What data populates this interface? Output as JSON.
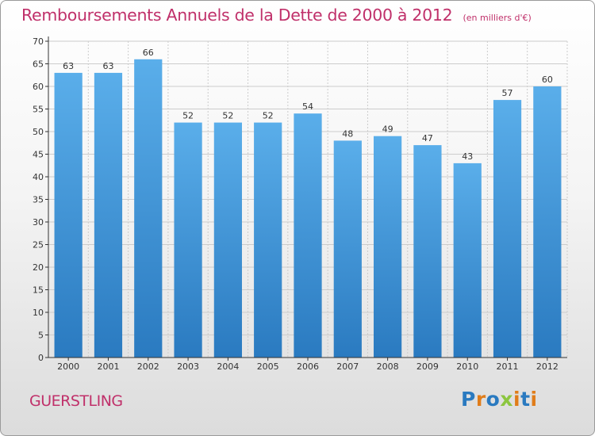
{
  "header": {
    "title": "Remboursements Annuels de la Dette de 2000 à 2012",
    "subtitle": "(en milliers d'€)"
  },
  "footer": {
    "commune": "GUERSTLING",
    "brand": "Proxiti"
  },
  "colors": {
    "title": "#c0306a",
    "bar_top": "#5aaeea",
    "bar_bottom": "#2a7ac0",
    "axis": "#333333",
    "grid": "#cccccc",
    "brand_letters": [
      "#2a7ac0",
      "#e07d1a",
      "#2a7ac0",
      "#8cc63f",
      "#e07d1a",
      "#2a7ac0",
      "#e07d1a"
    ]
  },
  "chart_data": {
    "type": "bar",
    "categories": [
      "2000",
      "2001",
      "2002",
      "2003",
      "2004",
      "2005",
      "2006",
      "2007",
      "2008",
      "2009",
      "2010",
      "2011",
      "2012"
    ],
    "values": [
      63,
      63,
      66,
      52,
      52,
      52,
      54,
      48,
      49,
      47,
      43,
      57,
      60
    ],
    "ylim": [
      0,
      70
    ],
    "yticks": [
      0,
      5,
      10,
      15,
      20,
      25,
      30,
      35,
      40,
      45,
      50,
      55,
      60,
      65,
      70
    ],
    "grid": true,
    "data_labels": true
  }
}
